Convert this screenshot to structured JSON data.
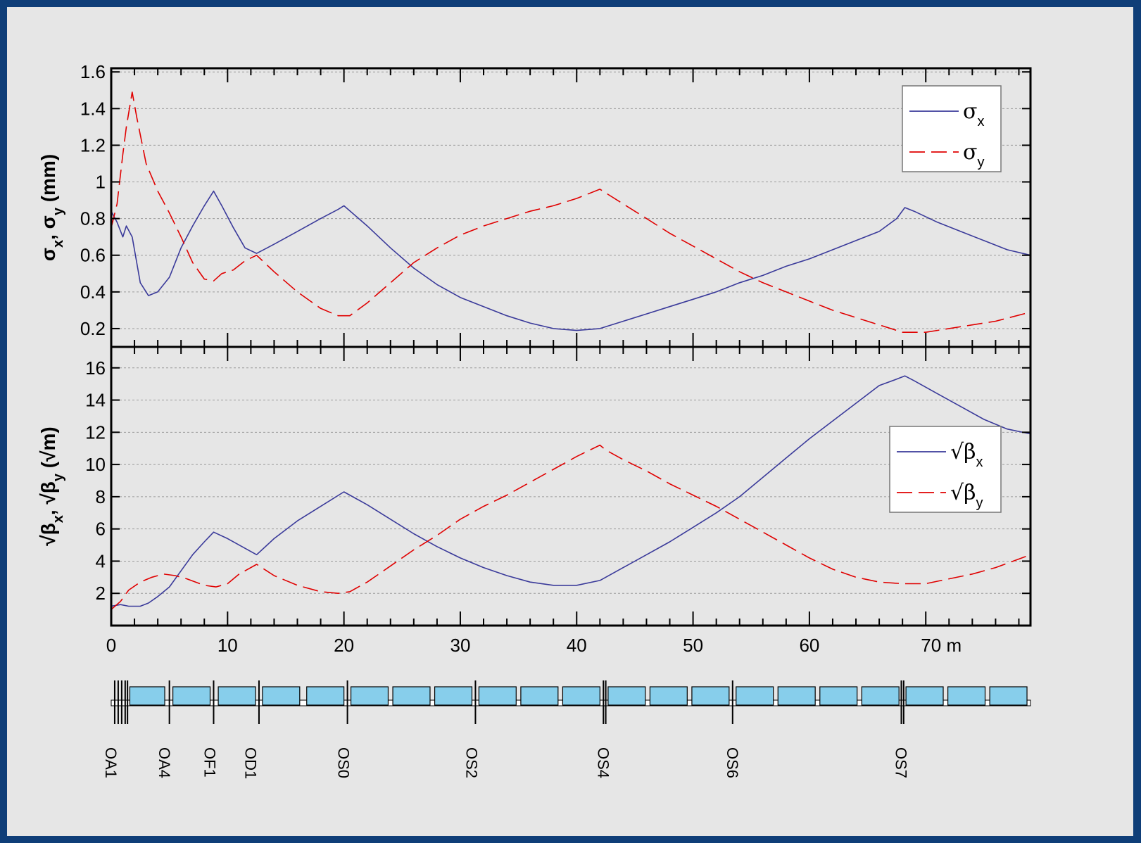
{
  "colors": {
    "frame_bg": "#e6e6e6",
    "outer_bg": "#0f3e78",
    "series_x": "#3a3a9a",
    "series_y": "#e00000",
    "element": "#87ceeb"
  },
  "chart_data": [
    {
      "type": "line",
      "ylabel": "σx, σy (mm)",
      "xlim": [
        0,
        79
      ],
      "ylim": [
        0.1,
        1.62
      ],
      "yticks": [
        0.2,
        0.4,
        0.6,
        0.8,
        1,
        1.2,
        1.4,
        1.6
      ],
      "ytick_labels": [
        "0.2",
        "0.4",
        "0.6",
        "0.8",
        "1",
        "1.2",
        "1.4",
        "1.6"
      ],
      "grid": true,
      "legend_position": "top-right",
      "series": [
        {
          "name": "σx",
          "base": "σ",
          "sub": "x",
          "style": "solid",
          "x": [
            0,
            0.5,
            1,
            1.3,
            1.8,
            2.5,
            3.2,
            4,
            5,
            6,
            7,
            8,
            8.8,
            9.5,
            10.5,
            11.5,
            12.5,
            14,
            16,
            18,
            19.5,
            20,
            22,
            24,
            26,
            28,
            30,
            32,
            34,
            36,
            38,
            40,
            42,
            44,
            46,
            48,
            50,
            52,
            54,
            56,
            58,
            60,
            62,
            64,
            66,
            67.5,
            68.2,
            69,
            71,
            73,
            75,
            77,
            79
          ],
          "values": [
            0.84,
            0.78,
            0.7,
            0.76,
            0.7,
            0.45,
            0.38,
            0.4,
            0.48,
            0.64,
            0.76,
            0.87,
            0.95,
            0.87,
            0.75,
            0.64,
            0.61,
            0.66,
            0.73,
            0.8,
            0.85,
            0.87,
            0.76,
            0.64,
            0.53,
            0.44,
            0.37,
            0.32,
            0.27,
            0.23,
            0.2,
            0.19,
            0.2,
            0.24,
            0.28,
            0.32,
            0.36,
            0.4,
            0.45,
            0.49,
            0.54,
            0.58,
            0.63,
            0.68,
            0.73,
            0.8,
            0.86,
            0.84,
            0.78,
            0.73,
            0.68,
            0.63,
            0.6
          ]
        },
        {
          "name": "σy",
          "base": "σ",
          "sub": "y",
          "style": "dashed",
          "x": [
            0,
            0.5,
            1,
            1.3,
            1.8,
            2.2,
            3,
            4,
            5,
            6,
            7,
            8,
            8.8,
            9.5,
            10.5,
            11.5,
            12.5,
            14,
            16,
            18,
            19.5,
            20.5,
            22,
            24,
            26,
            28,
            30,
            32,
            34,
            36,
            38,
            40,
            42,
            42.5,
            44,
            46,
            48,
            50,
            52,
            54,
            56,
            58,
            60,
            62,
            64,
            66,
            68,
            70,
            72,
            74,
            76,
            79
          ],
          "values": [
            0.75,
            0.88,
            1.15,
            1.3,
            1.49,
            1.35,
            1.1,
            0.95,
            0.83,
            0.7,
            0.56,
            0.47,
            0.46,
            0.5,
            0.52,
            0.57,
            0.6,
            0.51,
            0.4,
            0.31,
            0.27,
            0.27,
            0.34,
            0.45,
            0.56,
            0.64,
            0.71,
            0.76,
            0.8,
            0.84,
            0.87,
            0.91,
            0.96,
            0.94,
            0.88,
            0.8,
            0.72,
            0.65,
            0.58,
            0.51,
            0.45,
            0.4,
            0.35,
            0.3,
            0.26,
            0.22,
            0.18,
            0.18,
            0.2,
            0.22,
            0.24,
            0.29
          ]
        }
      ]
    },
    {
      "type": "line",
      "ylabel": "√βx, √βy (√m)",
      "xlim": [
        0,
        79
      ],
      "ylim": [
        0,
        17.3
      ],
      "yticks": [
        2,
        4,
        6,
        8,
        10,
        12,
        14,
        16
      ],
      "ytick_labels": [
        "2",
        "4",
        "6",
        "8",
        "10",
        "12",
        "14",
        "16"
      ],
      "xticks": [
        0,
        10,
        20,
        30,
        40,
        50,
        60,
        70
      ],
      "xtick_labels": [
        "0",
        "10",
        "20",
        "30",
        "40",
        "50",
        "60",
        "70 m"
      ],
      "grid": true,
      "legend_position": "right",
      "series": [
        {
          "name": "√βx",
          "base": "√β",
          "sub": "x",
          "style": "solid",
          "x": [
            0,
            0.8,
            1.5,
            2.5,
            3.2,
            4,
            5,
            6,
            7,
            8,
            8.8,
            10,
            12.5,
            14,
            16,
            18,
            20,
            22,
            24,
            26,
            28,
            30,
            32,
            34,
            36,
            38,
            40,
            42,
            44,
            46,
            48,
            50,
            52,
            54,
            56,
            58,
            60,
            62,
            64,
            66,
            67.5,
            68.2,
            69,
            71,
            73,
            75,
            77,
            79
          ],
          "values": [
            1.2,
            1.3,
            1.2,
            1.2,
            1.4,
            1.8,
            2.4,
            3.4,
            4.4,
            5.2,
            5.8,
            5.4,
            4.4,
            5.4,
            6.5,
            7.4,
            8.3,
            7.5,
            6.6,
            5.7,
            4.9,
            4.2,
            3.6,
            3.1,
            2.7,
            2.5,
            2.5,
            2.8,
            3.6,
            4.4,
            5.2,
            6.1,
            7.0,
            8.0,
            9.2,
            10.4,
            11.6,
            12.7,
            13.8,
            14.9,
            15.3,
            15.5,
            15.2,
            14.4,
            13.6,
            12.8,
            12.2,
            11.9
          ]
        },
        {
          "name": "√βy",
          "base": "√β",
          "sub": "y",
          "style": "dashed",
          "x": [
            0,
            0.8,
            1.5,
            2.5,
            3.5,
            4.5,
            5.5,
            6.5,
            8,
            9,
            10,
            11,
            12.5,
            14,
            16,
            18,
            19.5,
            20.5,
            22,
            24,
            26,
            28,
            30,
            32,
            34,
            36,
            38,
            40,
            42,
            42.5,
            44,
            46,
            48,
            50,
            52,
            54,
            56,
            58,
            60,
            62,
            64,
            66,
            68,
            70,
            72,
            74,
            76,
            79
          ],
          "values": [
            1.0,
            1.5,
            2.2,
            2.7,
            3.0,
            3.2,
            3.1,
            2.9,
            2.5,
            2.4,
            2.6,
            3.2,
            3.8,
            3.1,
            2.5,
            2.1,
            2.0,
            2.1,
            2.7,
            3.7,
            4.7,
            5.6,
            6.6,
            7.4,
            8.1,
            8.9,
            9.7,
            10.5,
            11.2,
            10.9,
            10.3,
            9.6,
            8.8,
            8.1,
            7.4,
            6.6,
            5.8,
            5.0,
            4.2,
            3.5,
            3.0,
            2.7,
            2.6,
            2.6,
            2.9,
            3.2,
            3.6,
            4.4
          ]
        }
      ]
    }
  ],
  "lattice": {
    "xlim": [
      0,
      79
    ],
    "element_labels": [
      {
        "text": "OA1",
        "s": 0
      },
      {
        "text": "OA4",
        "s": 4.6
      },
      {
        "text": "OF1",
        "s": 8.5
      },
      {
        "text": "OD1",
        "s": 12
      },
      {
        "text": "OS0",
        "s": 20
      },
      {
        "text": "OS2",
        "s": 31
      },
      {
        "text": "OS4",
        "s": 42.3
      },
      {
        "text": "OS6",
        "s": 53.4
      },
      {
        "text": "OS7",
        "s": 67.9
      }
    ],
    "dipoles": [
      [
        1.6,
        4.6
      ],
      [
        5.3,
        8.5
      ],
      [
        9.2,
        12.4
      ],
      [
        13,
        16.2
      ],
      [
        16.8,
        20
      ],
      [
        20.6,
        23.8
      ],
      [
        24.2,
        27.4
      ],
      [
        27.8,
        31
      ],
      [
        31.6,
        34.8
      ],
      [
        35.2,
        38.4
      ],
      [
        38.8,
        42
      ],
      [
        42.7,
        45.9
      ],
      [
        46.3,
        49.5
      ],
      [
        49.9,
        53.1
      ],
      [
        53.7,
        56.9
      ],
      [
        57.3,
        60.5
      ],
      [
        60.9,
        64.1
      ],
      [
        64.5,
        67.7
      ],
      [
        68.3,
        71.5
      ],
      [
        71.9,
        75.1
      ],
      [
        75.5,
        78.7
      ]
    ],
    "markers": [
      0.3,
      0.6,
      0.9,
      1.2,
      1.4,
      5,
      8.8,
      12.7,
      20.3,
      31.3,
      42.3,
      42.5,
      53.4,
      67.9,
      68.1
    ]
  }
}
